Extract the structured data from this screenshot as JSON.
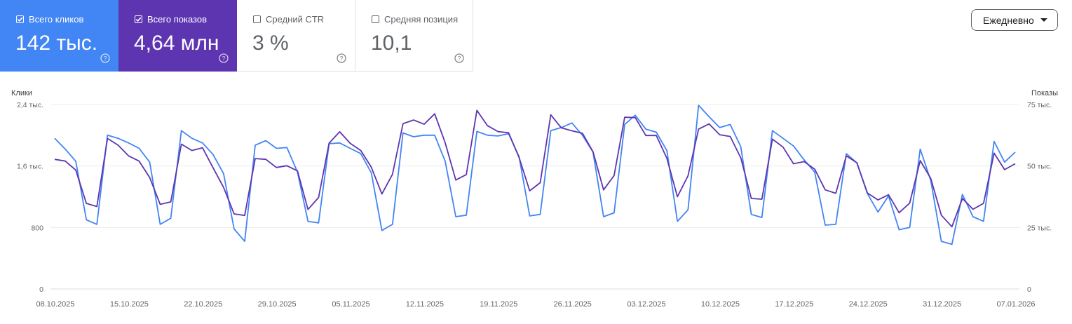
{
  "metrics": {
    "clicks": {
      "label": "Всего кликов",
      "value": "142 тыс.",
      "checked": true,
      "color": "#4285f4"
    },
    "impressions": {
      "label": "Всего показов",
      "value": "4,64 млн",
      "checked": true,
      "color": "#5e35b1"
    },
    "ctr": {
      "label": "Средний CTR",
      "value": "3 %",
      "checked": false
    },
    "position": {
      "label": "Средняя позиция",
      "value": "10,1",
      "checked": false
    }
  },
  "granularity": {
    "selected": "Ежедневно"
  },
  "chart_data": {
    "type": "line",
    "grid": true,
    "x_start": "08.10.2025",
    "x_end": "07.01.2026",
    "x_tick_labels": [
      "08.10.2025",
      "15.10.2025",
      "22.10.2025",
      "29.10.2025",
      "05.11.2025",
      "12.11.2025",
      "19.11.2025",
      "26.11.2025",
      "03.12.2025",
      "10.12.2025",
      "17.12.2025",
      "24.12.2025",
      "31.12.2025",
      "07.01.2026"
    ],
    "left_axis": {
      "title": "Клики",
      "ylim": [
        0,
        2400
      ],
      "ticks": [
        0,
        800,
        1600,
        2400
      ],
      "tick_labels": [
        "0",
        "800",
        "1,6 тыс.",
        "2,4 тыс."
      ]
    },
    "right_axis": {
      "title": "Показы",
      "ylim": [
        0,
        75000
      ],
      "ticks": [
        0,
        25000,
        50000,
        75000
      ],
      "tick_labels": [
        "0",
        "25 тыс.",
        "50 тыс.",
        "75 тыс."
      ]
    },
    "series": [
      {
        "key": "clicks",
        "axis": "left",
        "color": "#4285f4",
        "values": [
          1960,
          1820,
          1660,
          900,
          840,
          2000,
          1960,
          1900,
          1830,
          1650,
          840,
          920,
          2060,
          1960,
          1900,
          1750,
          1500,
          780,
          620,
          1870,
          1930,
          1830,
          1840,
          1520,
          880,
          860,
          1890,
          1900,
          1830,
          1760,
          1510,
          760,
          840,
          2030,
          1980,
          2000,
          2000,
          1660,
          940,
          960,
          2050,
          2000,
          1990,
          2020,
          1720,
          950,
          970,
          2060,
          2100,
          2160,
          2000,
          1780,
          940,
          990,
          2140,
          2260,
          2080,
          2040,
          1800,
          880,
          1030,
          2390,
          2240,
          2100,
          2140,
          1850,
          970,
          930,
          2060,
          1960,
          1860,
          1680,
          1520,
          830,
          840,
          1760,
          1640,
          1240,
          1000,
          1210,
          770,
          800,
          1820,
          1410,
          620,
          580,
          1230,
          940,
          880,
          1920,
          1650,
          1780
        ],
        "values_note": "left axis"
      },
      {
        "key": "impressions",
        "axis": "right",
        "color": "#5e35b1",
        "values": [
          52700,
          52000,
          48300,
          34800,
          33500,
          61200,
          58500,
          54100,
          52000,
          45300,
          34400,
          35400,
          58900,
          56300,
          57400,
          49300,
          41300,
          30500,
          29900,
          53000,
          52700,
          49400,
          50100,
          48000,
          32300,
          37200,
          59300,
          63900,
          59200,
          56300,
          49500,
          38600,
          46600,
          67200,
          68700,
          67000,
          71200,
          59400,
          44300,
          46500,
          72600,
          66400,
          64000,
          63500,
          53400,
          39900,
          43200,
          70800,
          65500,
          64300,
          63300,
          55800,
          40300,
          46100,
          69800,
          69700,
          62400,
          62400,
          53100,
          37500,
          46000,
          65000,
          67100,
          62700,
          62000,
          53300,
          36800,
          36500,
          60900,
          57700,
          50900,
          51800,
          48700,
          40300,
          38900,
          54100,
          51300,
          39000,
          36200,
          38300,
          31000,
          34900,
          52200,
          44900,
          30000,
          25300,
          36800,
          32400,
          34800,
          55200,
          48500,
          50900
        ],
        "values_note": "right axis"
      }
    ]
  }
}
